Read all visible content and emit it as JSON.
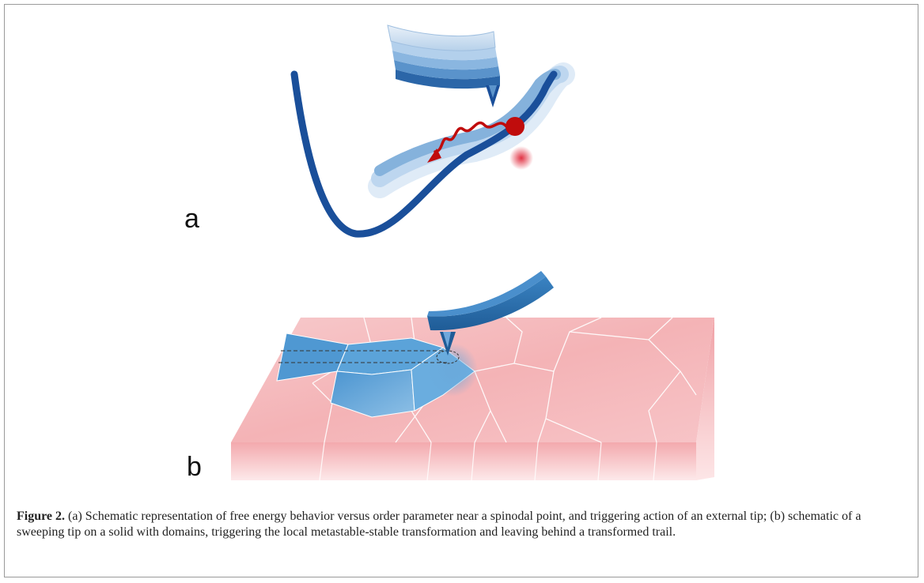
{
  "figure": {
    "panel_a_label": "a",
    "panel_b_label": "b",
    "caption_label": "Figure 2.",
    "caption_text": "(a) Schematic representation of free energy behavior versus order parameter near a spinodal point, and triggering action of an external tip; (b) schematic of a sweeping tip on a solid with domains, triggering the local metastable-stable transformation and leaving behind a transformed trail.",
    "colors": {
      "curve_dark": "#1a4f9a",
      "curve_light": "#9fc3e6",
      "arrow_red": "#c00c0c",
      "domain_pink": "#f2b8bb",
      "domain_blue": "#5aa2d8",
      "cantilever": "#2e6fae",
      "frame": "#9a9a9a"
    }
  }
}
